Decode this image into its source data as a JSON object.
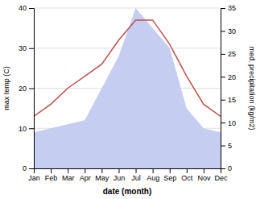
{
  "chart_data": {
    "type": "line",
    "categories": [
      "Jan",
      "Feb",
      "Mar",
      "Apr",
      "May",
      "Jun",
      "Jul",
      "Aug",
      "Sep",
      "Oct",
      "Nov",
      "Dec"
    ],
    "series": [
      {
        "type": "area",
        "color": "#c5cdf0",
        "values": [
          9,
          10,
          11,
          12,
          20,
          28,
          40,
          35,
          30,
          15,
          10,
          9
        ]
      },
      {
        "type": "line",
        "color": "#c0504d",
        "values": [
          13,
          16,
          20,
          23,
          26,
          32,
          37,
          37,
          31,
          23,
          16,
          13
        ]
      }
    ],
    "x_label": "date (month)",
    "y_label": "max temp (C)",
    "y2_label": "med. precipitation (kg/m2)",
    "ylim": [
      0,
      40
    ],
    "yticks": [
      0,
      10,
      20,
      30,
      40
    ],
    "y2lim": [
      0,
      35
    ],
    "y2ticks": [
      0,
      5,
      10,
      15,
      20,
      25,
      30,
      35
    ],
    "grid": true
  }
}
